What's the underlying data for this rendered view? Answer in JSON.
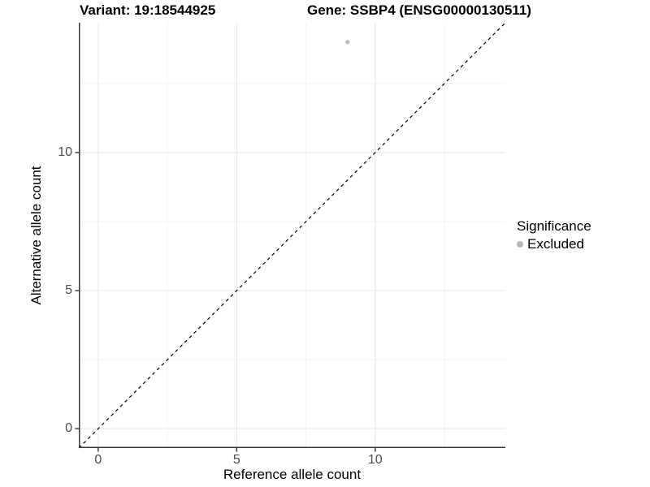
{
  "header": {
    "variant_title": "Variant: 19:18544925",
    "gene_title": "Gene: SSBP4 (ENSG00000130511)"
  },
  "legend": {
    "title": "Significance",
    "items": [
      {
        "label": "Excluded",
        "color": "#b5b5b5"
      }
    ]
  },
  "chart_data": {
    "type": "scatter",
    "title": "Variant: 19:18544925 | Gene: SSBP4 (ENSG00000130511)",
    "xlabel": "Reference allele count",
    "ylabel": "Alternative allele count",
    "xlim": [
      -0.7,
      14.7
    ],
    "ylim": [
      -0.7,
      14.7
    ],
    "x_major_ticks": [
      0,
      5,
      10
    ],
    "y_major_ticks": [
      0,
      5,
      10
    ],
    "x_minor_gridlines": [
      2.5,
      7.5,
      12.5
    ],
    "y_minor_gridlines": [
      2.5,
      7.5,
      12.5
    ],
    "grid": "major and minor, very light gray on white",
    "legend_position": "right-middle",
    "series": [
      {
        "name": "Excluded",
        "color": "#b9b9b9",
        "points": [
          {
            "x": 9,
            "y": 14
          }
        ]
      }
    ],
    "reference_line": {
      "type": "identity y=x",
      "style": "dashed",
      "color": "#000000",
      "x1": -0.7,
      "y1": -0.7,
      "x2": 14.7,
      "y2": 14.7
    }
  },
  "style": {
    "background": "#ffffff",
    "axis_color": "#3a3a3a",
    "tick_label_color": "#4d4d4d",
    "grid_major_color": "#e8e8e8",
    "grid_minor_color": "#f4f4f4"
  }
}
